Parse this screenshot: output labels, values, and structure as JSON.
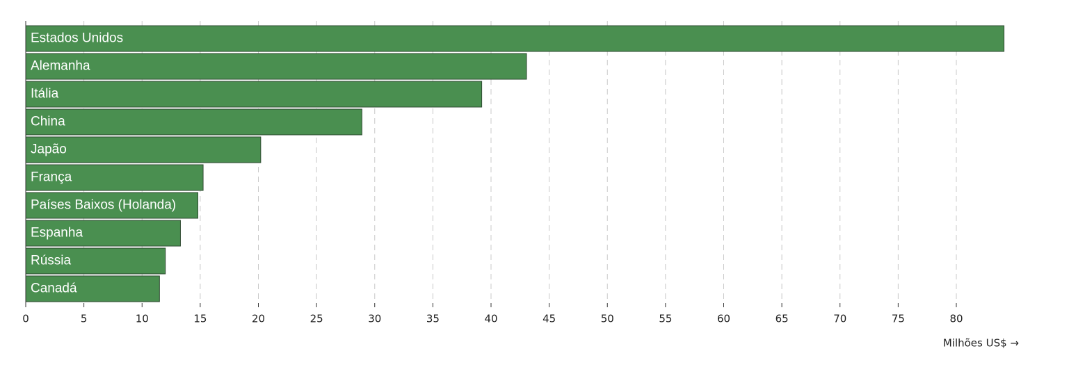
{
  "chart_data": {
    "type": "bar",
    "orientation": "horizontal",
    "categories": [
      "Estados Unidos",
      "Alemanha",
      "Itália",
      "China",
      "Japão",
      "França",
      "Países Baixos (Holanda)",
      "Espanha",
      "Rússia",
      "Canadá"
    ],
    "values": [
      84.1,
      43.05,
      39.2,
      28.9,
      20.2,
      15.25,
      14.8,
      13.3,
      12.0,
      11.5
    ],
    "color": "#4a8f50",
    "xlim": [
      0,
      85
    ],
    "xticks": [
      0,
      5,
      10,
      15,
      20,
      25,
      30,
      35,
      40,
      45,
      50,
      55,
      60,
      65,
      70,
      75,
      80
    ],
    "x_label": "Milhões US$ →",
    "grid": true
  }
}
